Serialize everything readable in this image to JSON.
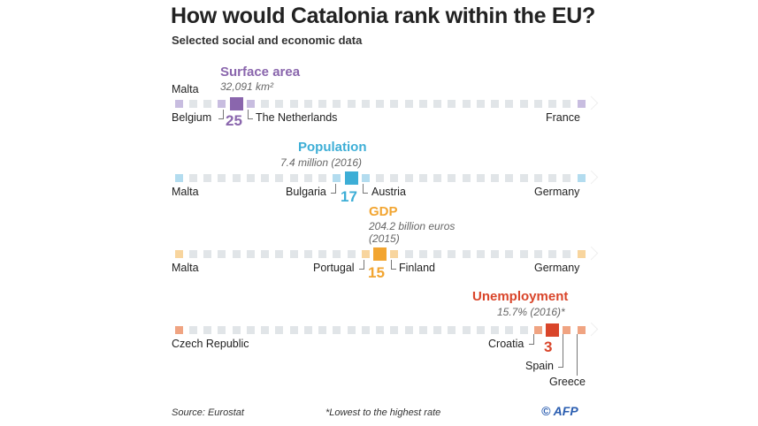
{
  "title": "How would Catalonia rank within the EU?",
  "subtitle": "Selected social and economic data",
  "footer": {
    "source": "Source: Eurostat",
    "note": "*Lowest to the highest rate",
    "credit": "© AFP"
  },
  "chart_data": {
    "type": "rank-strip",
    "total_positions": 29,
    "metrics": [
      {
        "name": "Surface area",
        "value": "32,091 km²",
        "rank": "25",
        "position": 5,
        "color": "#8a66ad",
        "light": "#c8bde0",
        "left": "Malta",
        "right": "France",
        "before": "Belgium",
        "after": "The Netherlands"
      },
      {
        "name": "Population",
        "value": "7.4 million (2016)",
        "rank": "17",
        "position": 13,
        "color": "#3daed6",
        "light": "#b3dcef",
        "left": "Malta",
        "right": "Germany",
        "before": "Bulgaria",
        "after": "Austria"
      },
      {
        "name": "GDP",
        "value": "204.2 billion euros (2015)",
        "value_lines": [
          "204.2 billion euros",
          "(2015)"
        ],
        "rank": "15",
        "position": 15,
        "color": "#f2a531",
        "light": "#f8d59e",
        "left": "Malta",
        "right": "Germany",
        "before": "Portugal",
        "after": "Finland"
      },
      {
        "name": "Unemployment",
        "value": "15.7% (2016)*",
        "rank": "3",
        "position": 27,
        "color": "#d9452a",
        "light": "#f0a482",
        "left": "Czech Republic",
        "before": "Croatia",
        "after": "Spain",
        "last": "Greece"
      }
    ],
    "grey": "#e1e5e8"
  }
}
